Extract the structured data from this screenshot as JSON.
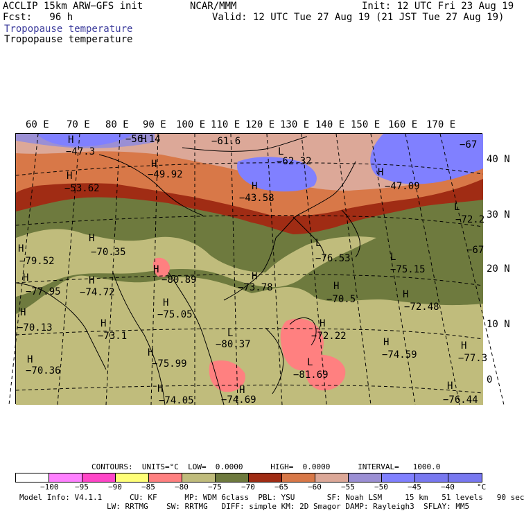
{
  "header": {
    "model": "ACCLIP 15km ARW−GFS init",
    "forecast": "Fcst:   96 h",
    "org": "NCAR/MMM",
    "init": "Init: 12 UTC Fri 23 Aug 19",
    "valid": "Valid: 12 UTC Tue 27 Aug 19 (21 JST Tue 27 Aug 19)",
    "field1": "Tropopause temperature",
    "field2": "Tropopause temperature"
  },
  "colors": {
    "field1": "#3c3c9c",
    "bins": [
      "#ffffff",
      "#ff80ff",
      "#ff46c8",
      "#ffff78",
      "#ff8080",
      "#c0bc7c",
      "#6e7a3e",
      "#a02c14",
      "#d87848",
      "#dca898",
      "#9b8fd4",
      "#8080ff",
      "#7878f0"
    ]
  },
  "map": {
    "lon_labels": [
      "60 E",
      "70 E",
      "80 E",
      "90 E",
      "100 E",
      "110 E",
      "120 E",
      "130 E",
      "140 E",
      "150 E",
      "160 E",
      "170 E"
    ],
    "lat_labels": [
      "40 N",
      "30 N",
      "20 N",
      "10 N",
      "0"
    ],
    "extrema": [
      {
        "sym": "H",
        "val": "−47.3"
      },
      {
        "sym": "H",
        "val": "−56.14"
      },
      {
        "sym": "",
        "val": "−61.6"
      },
      {
        "sym": "L",
        "val": "−62.32"
      },
      {
        "sym": "",
        "val": "−67"
      },
      {
        "sym": "H",
        "val": "−49.92"
      },
      {
        "sym": "H",
        "val": "−53.62"
      },
      {
        "sym": "H",
        "val": "−43.58"
      },
      {
        "sym": "H",
        "val": "−47.09"
      },
      {
        "sym": "L",
        "val": "−72.2"
      },
      {
        "sym": "H",
        "val": "−70.35"
      },
      {
        "sym": "H",
        "val": "−79.52"
      },
      {
        "sym": "L",
        "val": "−76.53"
      },
      {
        "sym": "L",
        "val": "−75.15"
      },
      {
        "sym": "",
        "val": "−67"
      },
      {
        "sym": "H",
        "val": "−80.89"
      },
      {
        "sym": "H",
        "val": "−73.78"
      },
      {
        "sym": "H",
        "val": "−77.95"
      },
      {
        "sym": "H",
        "val": "−74.72"
      },
      {
        "sym": "H",
        "val": "−70.5"
      },
      {
        "sym": "H",
        "val": "−72.48"
      },
      {
        "sym": "H",
        "val": "−75.05"
      },
      {
        "sym": "H",
        "val": "−70.13"
      },
      {
        "sym": "H",
        "val": "−73.1"
      },
      {
        "sym": "L",
        "val": "−80.37"
      },
      {
        "sym": "H",
        "val": "−72.22"
      },
      {
        "sym": "H",
        "val": "−74.59"
      },
      {
        "sym": "H",
        "val": "−77.3"
      },
      {
        "sym": "H",
        "val": "−70.36"
      },
      {
        "sym": "H",
        "val": "−75.99"
      },
      {
        "sym": "L",
        "val": "−81.69"
      },
      {
        "sym": "H",
        "val": "−76.44"
      },
      {
        "sym": "H",
        "val": "−74.05"
      },
      {
        "sym": "H",
        "val": "−74.69"
      }
    ]
  },
  "legend": {
    "contours": "CONTOURS:  UNITS=°C  LOW=  0.0000      HIGH=  0.0000      INTERVAL=   1000.0",
    "ticks": [
      "−100",
      "−95",
      "−90",
      "−85",
      "−80",
      "−75",
      "−70",
      "−65",
      "−60",
      "−55",
      "−50",
      "−45",
      "−40",
      "°C"
    ],
    "info1": "Model Info: V4.1.1      CU: KF      MP: WDM 6class  PBL: YSU       SF: Noah LSM     15 km   51 levels   90 sec",
    "info2": "LW: RRTMG    SW: RRTMG   DIFF: simple KM: 2D Smagor DAMP: Rayleigh3  SFLAY: MM5"
  }
}
